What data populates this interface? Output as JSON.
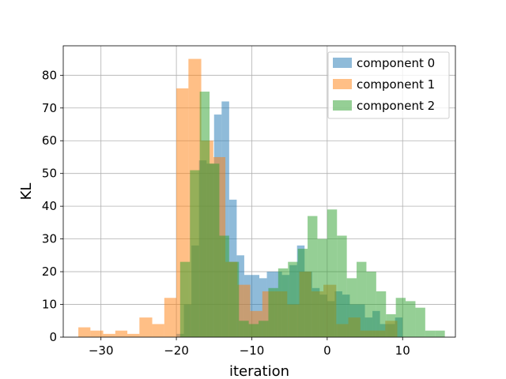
{
  "chart_data": {
    "type": "histogram",
    "title": "",
    "xlabel": "iteration",
    "ylabel": "KL",
    "xlim": [
      -35,
      17
    ],
    "ylim": [
      0,
      89
    ],
    "xticks": [
      -30,
      -20,
      -10,
      0,
      10
    ],
    "yticks": [
      0,
      10,
      20,
      30,
      40,
      50,
      60,
      70,
      80
    ],
    "grid": true,
    "legend_position": "top-right",
    "series": [
      {
        "name": "component 0",
        "color": "#1f77b4",
        "alpha": 0.5,
        "bins": [
          [
            -20.0,
            -19.0,
            1
          ],
          [
            -19.0,
            -18.0,
            10
          ],
          [
            -18.0,
            -17.0,
            28
          ],
          [
            -17.0,
            -16.0,
            54
          ],
          [
            -16.0,
            -15.0,
            53
          ],
          [
            -15.0,
            -14.0,
            68
          ],
          [
            -14.0,
            -13.0,
            72
          ],
          [
            -13.0,
            -12.0,
            42
          ],
          [
            -12.0,
            -11.0,
            25
          ],
          [
            -11.0,
            -10.0,
            19
          ],
          [
            -10.0,
            -9.0,
            19
          ],
          [
            -9.0,
            -8.0,
            18
          ],
          [
            -8.0,
            -7.0,
            20
          ],
          [
            -7.0,
            -6.0,
            20
          ],
          [
            -6.0,
            -5.0,
            19
          ],
          [
            -5.0,
            -4.0,
            22
          ],
          [
            -4.0,
            -3.0,
            28
          ],
          [
            -3.0,
            -2.0,
            20
          ],
          [
            -2.0,
            -1.0,
            15
          ],
          [
            -1.0,
            0.0,
            13
          ],
          [
            0.0,
            1.0,
            11
          ],
          [
            1.0,
            2.0,
            14
          ],
          [
            2.0,
            3.0,
            13
          ],
          [
            3.0,
            4.0,
            10
          ],
          [
            4.0,
            5.0,
            10
          ],
          [
            5.0,
            6.0,
            6
          ],
          [
            6.0,
            7.0,
            8
          ],
          [
            7.0,
            8.0,
            4
          ],
          [
            8.0,
            9.0,
            4
          ],
          [
            9.0,
            10.0,
            6
          ]
        ]
      },
      {
        "name": "component 1",
        "color": "#ff7f0e",
        "alpha": 0.5,
        "bins": [
          [
            -33.0,
            -31.4,
            3
          ],
          [
            -31.4,
            -29.7,
            2
          ],
          [
            -29.7,
            -28.1,
            1
          ],
          [
            -28.1,
            -26.5,
            2
          ],
          [
            -26.5,
            -24.9,
            1
          ],
          [
            -24.9,
            -23.2,
            6
          ],
          [
            -23.2,
            -21.6,
            4
          ],
          [
            -21.6,
            -20.0,
            12
          ],
          [
            -20.0,
            -18.4,
            76
          ],
          [
            -18.4,
            -16.7,
            85
          ],
          [
            -16.7,
            -15.1,
            60
          ],
          [
            -15.1,
            -13.5,
            55
          ],
          [
            -13.5,
            -11.9,
            23
          ],
          [
            -11.9,
            -10.2,
            16
          ],
          [
            -10.2,
            -8.6,
            8
          ],
          [
            -8.6,
            -7.0,
            14
          ],
          [
            -7.0,
            -5.3,
            14
          ],
          [
            -5.3,
            -3.7,
            10
          ],
          [
            -3.7,
            -2.1,
            20
          ],
          [
            -2.1,
            -0.5,
            14
          ],
          [
            -0.5,
            1.2,
            16
          ],
          [
            1.2,
            2.8,
            4
          ],
          [
            2.8,
            4.4,
            6
          ],
          [
            4.4,
            6.0,
            2
          ],
          [
            6.0,
            7.7,
            2
          ],
          [
            7.7,
            9.3,
            5
          ]
        ]
      },
      {
        "name": "component 2",
        "color": "#2ca02c",
        "alpha": 0.5,
        "bins": [
          [
            -19.5,
            -18.2,
            23
          ],
          [
            -18.2,
            -16.9,
            51
          ],
          [
            -16.9,
            -15.6,
            75
          ],
          [
            -15.6,
            -14.3,
            53
          ],
          [
            -14.3,
            -13.0,
            31
          ],
          [
            -13.0,
            -11.7,
            23
          ],
          [
            -11.7,
            -10.4,
            5
          ],
          [
            -10.4,
            -9.1,
            4
          ],
          [
            -9.1,
            -7.8,
            5
          ],
          [
            -7.8,
            -6.5,
            15
          ],
          [
            -6.5,
            -5.2,
            21
          ],
          [
            -5.2,
            -3.9,
            23
          ],
          [
            -3.9,
            -2.6,
            27
          ],
          [
            -2.6,
            -1.3,
            37
          ],
          [
            -1.3,
            0.0,
            30
          ],
          [
            0.0,
            1.3,
            39
          ],
          [
            1.3,
            2.6,
            31
          ],
          [
            2.6,
            3.9,
            18
          ],
          [
            3.9,
            5.2,
            23
          ],
          [
            5.2,
            6.5,
            20
          ],
          [
            6.5,
            7.8,
            14
          ],
          [
            7.8,
            9.1,
            7
          ],
          [
            9.1,
            10.4,
            12
          ],
          [
            10.4,
            11.7,
            11
          ],
          [
            11.7,
            13.0,
            9
          ],
          [
            13.0,
            14.3,
            2
          ],
          [
            14.3,
            15.6,
            2
          ]
        ]
      }
    ]
  }
}
